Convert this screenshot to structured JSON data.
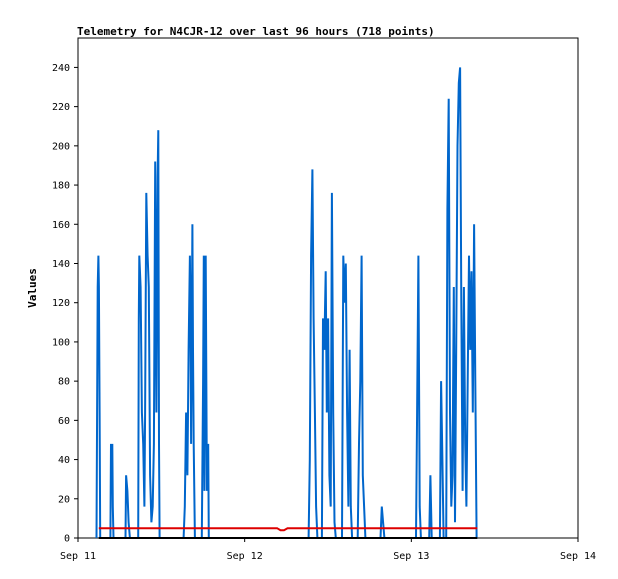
{
  "chart_data": {
    "type": "line",
    "title": "Telemetry for N4CJR-12 over last 96 hours (718 points)",
    "xlabel": "",
    "ylabel": "Values",
    "ylim": [
      0,
      255
    ],
    "yticks": [
      0,
      20,
      40,
      60,
      80,
      100,
      120,
      140,
      160,
      180,
      200,
      220,
      240
    ],
    "xlim": [
      "2023-09-11 00:00",
      "2023-09-14 00:00"
    ],
    "xticks": [
      {
        "label": "Sep 11",
        "value": "2023-09-11 00:00"
      },
      {
        "label": "Sep 12",
        "value": "2023-09-12 00:00"
      },
      {
        "label": "Sep 13",
        "value": "2023-09-13 00:00"
      },
      {
        "label": "Sep 14",
        "value": "2023-09-14 00:00"
      }
    ],
    "grid": false,
    "colors": {
      "primary": "#0066cc",
      "secondary": "#dd0000",
      "baseline": "#000000"
    },
    "series": [
      {
        "color": "#0066cc",
        "points": [
          [
            "2023-09-11 02:40",
            0
          ],
          [
            "2023-09-11 02:45",
            64
          ],
          [
            "2023-09-11 02:50",
            128
          ],
          [
            "2023-09-11 02:56",
            144
          ],
          [
            "2023-09-11 03:01",
            128
          ],
          [
            "2023-09-11 03:07",
            64
          ],
          [
            "2023-09-11 03:12",
            0
          ],
          [
            "2023-09-11 03:17",
            0
          ],
          [
            "2023-09-11 04:40",
            0
          ],
          [
            "2023-09-11 04:45",
            48
          ],
          [
            "2023-09-11 04:50",
            32
          ],
          [
            "2023-09-11 04:56",
            48
          ],
          [
            "2023-09-11 05:01",
            16
          ],
          [
            "2023-09-11 05:07",
            0
          ],
          [
            "2023-09-11 06:50",
            0
          ],
          [
            "2023-09-11 06:56",
            32
          ],
          [
            "2023-09-11 07:07",
            24
          ],
          [
            "2023-09-11 07:17",
            8
          ],
          [
            "2023-09-11 07:28",
            0
          ],
          [
            "2023-09-11 08:40",
            0
          ],
          [
            "2023-09-11 08:45",
            112
          ],
          [
            "2023-09-11 08:50",
            144
          ],
          [
            "2023-09-11 09:01",
            128
          ],
          [
            "2023-09-11 09:12",
            64
          ],
          [
            "2023-09-11 09:23",
            48
          ],
          [
            "2023-09-11 09:34",
            16
          ],
          [
            "2023-09-11 09:40",
            64
          ],
          [
            "2023-09-11 09:50",
            176
          ],
          [
            "2023-09-11 10:01",
            144
          ],
          [
            "2023-09-11 10:12",
            128
          ],
          [
            "2023-09-11 10:23",
            32
          ],
          [
            "2023-09-11 10:34",
            8
          ],
          [
            "2023-09-11 10:45",
            16
          ],
          [
            "2023-09-11 10:56",
            48
          ],
          [
            "2023-09-11 11:07",
            192
          ],
          [
            "2023-09-11 11:17",
            64
          ],
          [
            "2023-09-11 11:28",
            184
          ],
          [
            "2023-09-11 11:34",
            208
          ],
          [
            "2023-09-11 11:40",
            48
          ],
          [
            "2023-09-11 11:45",
            0
          ],
          [
            "2023-09-11 12:00",
            0
          ],
          [
            "2023-09-11 15:12",
            0
          ],
          [
            "2023-09-11 15:23",
            16
          ],
          [
            "2023-09-11 15:34",
            64
          ],
          [
            "2023-09-11 15:45",
            32
          ],
          [
            "2023-09-11 15:56",
            96
          ],
          [
            "2023-09-11 16:07",
            144
          ],
          [
            "2023-09-11 16:12",
            112
          ],
          [
            "2023-09-11 16:17",
            48
          ],
          [
            "2023-09-11 16:28",
            160
          ],
          [
            "2023-09-11 16:34",
            96
          ],
          [
            "2023-09-11 16:40",
            48
          ],
          [
            "2023-09-11 16:50",
            0
          ],
          [
            "2023-09-11 17:50",
            0
          ],
          [
            "2023-09-11 18:01",
            80
          ],
          [
            "2023-09-11 18:07",
            144
          ],
          [
            "2023-09-11 18:12",
            24
          ],
          [
            "2023-09-11 18:23",
            144
          ],
          [
            "2023-09-11 18:34",
            24
          ],
          [
            "2023-09-11 18:45",
            48
          ],
          [
            "2023-09-11 18:50",
            0
          ],
          [
            "2023-09-12 09:12",
            0
          ],
          [
            "2023-09-12 09:23",
            40
          ],
          [
            "2023-09-12 09:34",
            144
          ],
          [
            "2023-09-12 09:45",
            188
          ],
          [
            "2023-09-12 09:56",
            112
          ],
          [
            "2023-09-12 10:07",
            64
          ],
          [
            "2023-09-12 10:17",
            16
          ],
          [
            "2023-09-12 10:28",
            0
          ],
          [
            "2023-09-12 11:07",
            0
          ],
          [
            "2023-09-12 11:17",
            112
          ],
          [
            "2023-09-12 11:28",
            96
          ],
          [
            "2023-09-12 11:40",
            136
          ],
          [
            "2023-09-12 11:50",
            64
          ],
          [
            "2023-09-12 12:01",
            112
          ],
          [
            "2023-09-12 12:12",
            32
          ],
          [
            "2023-09-12 12:23",
            16
          ],
          [
            "2023-09-12 12:34",
            176
          ],
          [
            "2023-09-12 12:45",
            64
          ],
          [
            "2023-09-12 12:56",
            8
          ],
          [
            "2023-09-12 13:07",
            0
          ],
          [
            "2023-09-12 14:01",
            0
          ],
          [
            "2023-09-12 14:12",
            144
          ],
          [
            "2023-09-12 14:23",
            120
          ],
          [
            "2023-09-12 14:34",
            140
          ],
          [
            "2023-09-12 14:45",
            64
          ],
          [
            "2023-09-12 14:56",
            16
          ],
          [
            "2023-09-12 15:07",
            96
          ],
          [
            "2023-09-12 15:17",
            16
          ],
          [
            "2023-09-12 15:28",
            0
          ],
          [
            "2023-09-12 16:17",
            0
          ],
          [
            "2023-09-12 16:28",
            48
          ],
          [
            "2023-09-12 16:39",
            80
          ],
          [
            "2023-09-12 16:50",
            144
          ],
          [
            "2023-09-12 17:01",
            32
          ],
          [
            "2023-09-12 17:12",
            16
          ],
          [
            "2023-09-12 17:23",
            0
          ],
          [
            "2023-09-12 19:34",
            0
          ],
          [
            "2023-09-12 19:45",
            16
          ],
          [
            "2023-09-12 19:56",
            8
          ],
          [
            "2023-09-12 20:07",
            0
          ],
          [
            "2023-09-13 00:40",
            0
          ],
          [
            "2023-09-13 00:50",
            64
          ],
          [
            "2023-09-13 01:01",
            144
          ],
          [
            "2023-09-13 01:12",
            16
          ],
          [
            "2023-09-13 01:23",
            0
          ],
          [
            "2023-09-13 02:34",
            0
          ],
          [
            "2023-09-13 02:45",
            32
          ],
          [
            "2023-09-13 02:56",
            0
          ],
          [
            "2023-09-13 04:07",
            0
          ],
          [
            "2023-09-13 04:17",
            80
          ],
          [
            "2023-09-13 04:28",
            40
          ],
          [
            "2023-09-13 04:39",
            0
          ],
          [
            "2023-09-13 05:01",
            0
          ],
          [
            "2023-09-13 05:12",
            168
          ],
          [
            "2023-09-13 05:23",
            224
          ],
          [
            "2023-09-13 05:34",
            64
          ],
          [
            "2023-09-13 05:45",
            16
          ],
          [
            "2023-09-13 05:56",
            32
          ],
          [
            "2023-09-13 06:07",
            128
          ],
          [
            "2023-09-13 06:17",
            8
          ],
          [
            "2023-09-13 06:28",
            96
          ],
          [
            "2023-09-13 06:39",
            200
          ],
          [
            "2023-09-13 06:50",
            232
          ],
          [
            "2023-09-13 07:01",
            240
          ],
          [
            "2023-09-13 07:12",
            120
          ],
          [
            "2023-09-13 07:23",
            24
          ],
          [
            "2023-09-13 07:34",
            128
          ],
          [
            "2023-09-13 07:45",
            48
          ],
          [
            "2023-09-13 07:56",
            16
          ],
          [
            "2023-09-13 08:07",
            80
          ],
          [
            "2023-09-13 08:18",
            144
          ],
          [
            "2023-09-13 08:29",
            96
          ],
          [
            "2023-09-13 08:40",
            136
          ],
          [
            "2023-09-13 08:51",
            64
          ],
          [
            "2023-09-13 09:02",
            160
          ],
          [
            "2023-09-13 09:13",
            80
          ],
          [
            "2023-09-13 09:24",
            0
          ]
        ]
      },
      {
        "color": "#dd0000",
        "points": [
          [
            "2023-09-11 03:00",
            5
          ],
          [
            "2023-09-12 04:40",
            5
          ],
          [
            "2023-09-12 05:10",
            4
          ],
          [
            "2023-09-12 05:40",
            4
          ],
          [
            "2023-09-12 06:10",
            5
          ],
          [
            "2023-09-13 09:30",
            5
          ]
        ]
      },
      {
        "color": "#000000",
        "points": [
          [
            "2023-09-11 03:00",
            0
          ],
          [
            "2023-09-13 09:30",
            0
          ]
        ]
      }
    ]
  }
}
